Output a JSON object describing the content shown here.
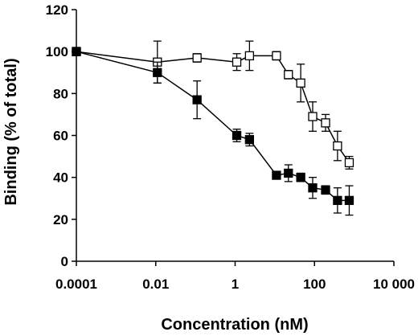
{
  "chart_data": {
    "type": "line",
    "title": "",
    "xlabel": "Concentration (nM)",
    "ylabel": "Binding (% of total)",
    "x_scale": "log",
    "xlim": [
      0.0001,
      10000
    ],
    "ylim": [
      0,
      120
    ],
    "x_tick_values": [
      0.0001,
      0.01,
      1,
      100,
      10000
    ],
    "x_tick_labels": [
      "0.0001",
      "0.01",
      "1",
      "100",
      "10 000"
    ],
    "y_ticks": [
      0,
      20,
      40,
      60,
      80,
      100,
      120
    ],
    "grid": false,
    "legend": "none",
    "series": [
      {
        "marker": "open-square",
        "color": "#000000",
        "x": [
          0.0001,
          0.011,
          0.11,
          1.1,
          2.3,
          11,
          22,
          45,
          90,
          190,
          380,
          750
        ],
        "y": [
          100,
          95,
          97,
          95,
          98,
          98,
          89,
          85,
          69,
          66,
          55,
          47
        ],
        "err": [
          2,
          10,
          2,
          4,
          7,
          2,
          2,
          9,
          7,
          4,
          7,
          3
        ]
      },
      {
        "marker": "filled-square",
        "color": "#000000",
        "x": [
          0.0001,
          0.011,
          0.11,
          1.1,
          2.3,
          11,
          22,
          45,
          90,
          190,
          380,
          750
        ],
        "y": [
          100,
          90,
          77,
          60,
          58,
          41,
          42,
          40,
          35,
          34,
          29,
          29
        ],
        "err": [
          1,
          5,
          9,
          3,
          3,
          1,
          4,
          2,
          5,
          2,
          6,
          7
        ]
      }
    ]
  }
}
